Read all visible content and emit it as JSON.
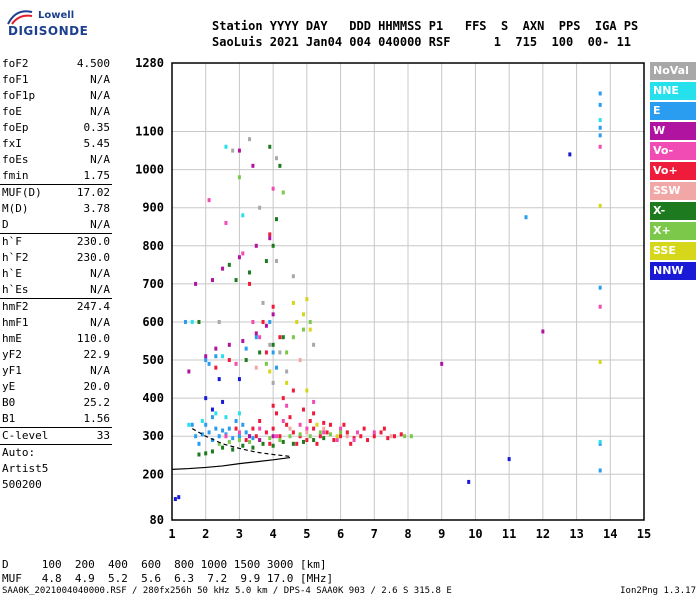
{
  "logo": {
    "brand": "Lowell",
    "product": "DIGISONDE"
  },
  "header": {
    "line1": "Station YYYY DAY   DDD HHMMSS P1   FFS  S  AXN  PPS  IGA PS",
    "line2": "SaoLuis 2021 Jan04 004 040000 RSF      1  715  100  00- 11"
  },
  "params": {
    "groups": [
      [
        [
          "foF2",
          "4.500"
        ],
        [
          "foF1",
          "N/A"
        ],
        [
          "foF1p",
          "N/A"
        ],
        [
          "foE",
          "N/A"
        ],
        [
          "foEp",
          "0.35"
        ],
        [
          "fxI",
          "5.45"
        ],
        [
          "foEs",
          "N/A"
        ],
        [
          "fmin",
          "1.75"
        ]
      ],
      [
        [
          "MUF(D)",
          "17.02"
        ],
        [
          "M(D)",
          "3.78"
        ],
        [
          "D",
          "N/A"
        ]
      ],
      [
        [
          "h`F",
          "230.0"
        ],
        [
          "h`F2",
          "230.0"
        ],
        [
          "h`E",
          "N/A"
        ],
        [
          "h`Es",
          "N/A"
        ]
      ],
      [
        [
          "hmF2",
          "247.4"
        ],
        [
          "hmF1",
          "N/A"
        ],
        [
          "hmE",
          "110.0"
        ],
        [
          "yF2",
          "22.9"
        ],
        [
          "yF1",
          "N/A"
        ],
        [
          "yE",
          "20.0"
        ],
        [
          "B0",
          "25.2"
        ],
        [
          "B1",
          "1.56"
        ]
      ],
      [
        [
          "C-level",
          "33"
        ]
      ]
    ],
    "auto_label": "Auto:",
    "artist": "Artist5",
    "artist_version": "500200"
  },
  "legend": [
    {
      "label": "NoVal",
      "color": "#a8a8a8"
    },
    {
      "label": "NNE",
      "color": "#26e0ec"
    },
    {
      "label": "E",
      "color": "#2a9df0"
    },
    {
      "label": "W",
      "color": "#b0139f"
    },
    {
      "label": "Vo-",
      "color": "#f04cb4"
    },
    {
      "label": "Vo+",
      "color": "#ee1b3a"
    },
    {
      "label": "SSW",
      "color": "#f2a7a7"
    },
    {
      "label": "X-",
      "color": "#1e7a1e"
    },
    {
      "label": "X+",
      "color": "#7cc84a"
    },
    {
      "label": "SSE",
      "color": "#d6d61a"
    },
    {
      "label": "NNW",
      "color": "#1a1ad6"
    }
  ],
  "muf_table": {
    "row_d": "D     100  200  400  600  800 1000 1500 3000 [km]",
    "row_muf": "MUF   4.8  4.9  5.2  5.6  6.3  7.2  9.9 17.0 [MHz]"
  },
  "footer": {
    "left": "SAA0K_2021004040000.RSF / 280fx256h 50 kHz 5.0 km / DPS-4 SAA0K 903 / 2.6 S 315.8 E",
    "right": "Ion2Png 1.3.17"
  },
  "chart_data": {
    "type": "scatter",
    "title": "",
    "xlabel": "",
    "ylabel": "",
    "xlim": [
      1,
      15
    ],
    "ylim": [
      80,
      1280
    ],
    "x_ticks": [
      1,
      2,
      3,
      4,
      5,
      6,
      7,
      8,
      9,
      10,
      11,
      12,
      13,
      14,
      15
    ],
    "y_ticks": [
      80,
      200,
      300,
      400,
      500,
      600,
      700,
      800,
      900,
      1000,
      1100,
      1280
    ],
    "grid": true,
    "legend_position": "right",
    "trace_hF": {
      "x": [
        1.0,
        1.5,
        2.0,
        2.5,
        3.0,
        3.5,
        4.0,
        4.5
      ],
      "y": [
        213,
        215,
        218,
        222,
        228,
        233,
        238,
        244
      ]
    },
    "trace_hmF2": {
      "x": [
        1.6,
        2.0,
        2.5,
        3.0,
        3.5,
        4.0,
        4.5
      ],
      "y": [
        320,
        300,
        280,
        268,
        258,
        252,
        247
      ]
    },
    "series": [
      {
        "name": "E",
        "points": [
          [
            1.7,
            300
          ],
          [
            1.9,
            305
          ],
          [
            2.1,
            310
          ],
          [
            2.2,
            290
          ],
          [
            2.4,
            300
          ],
          [
            2.6,
            305
          ],
          [
            2.8,
            295
          ],
          [
            3.0,
            300
          ],
          [
            2.0,
            330
          ],
          [
            2.3,
            320
          ],
          [
            2.5,
            315
          ],
          [
            3.2,
            310
          ],
          [
            1.8,
            280
          ],
          [
            2.7,
            320
          ],
          [
            3.4,
            295
          ],
          [
            2.9,
            340
          ],
          [
            3.1,
            330
          ],
          [
            2.2,
            350
          ],
          [
            1.6,
            330
          ],
          [
            2.0,
            500
          ],
          [
            2.3,
            510
          ],
          [
            3.2,
            530
          ],
          [
            3.5,
            560
          ],
          [
            3.9,
            600
          ],
          [
            4.0,
            520
          ],
          [
            2.1,
            490
          ],
          [
            13.7,
            1200
          ],
          [
            13.7,
            1170
          ],
          [
            13.7,
            1110
          ],
          [
            13.7,
            1090
          ],
          [
            13.7,
            690
          ],
          [
            13.7,
            280
          ],
          [
            13.7,
            210
          ],
          [
            11.5,
            875
          ],
          [
            1.4,
            600
          ],
          [
            4.1,
            480
          ]
        ]
      },
      {
        "name": "Vo+",
        "points": [
          [
            3.2,
            290
          ],
          [
            3.5,
            300
          ],
          [
            3.8,
            310
          ],
          [
            4.0,
            320
          ],
          [
            4.2,
            300
          ],
          [
            4.4,
            330
          ],
          [
            4.6,
            310
          ],
          [
            4.8,
            300
          ],
          [
            5.0,
            290
          ],
          [
            5.2,
            320
          ],
          [
            5.4,
            300
          ],
          [
            5.6,
            310
          ],
          [
            5.8,
            290
          ],
          [
            6.0,
            300
          ],
          [
            6.2,
            310
          ],
          [
            6.4,
            295
          ],
          [
            6.6,
            300
          ],
          [
            6.8,
            290
          ],
          [
            7.0,
            300
          ],
          [
            7.2,
            310
          ],
          [
            7.4,
            295
          ],
          [
            7.6,
            300
          ],
          [
            7.8,
            305
          ],
          [
            3.6,
            340
          ],
          [
            4.1,
            360
          ],
          [
            4.5,
            350
          ],
          [
            5.1,
            340
          ],
          [
            5.5,
            335
          ],
          [
            6.1,
            330
          ],
          [
            4.3,
            400
          ],
          [
            4.6,
            420
          ],
          [
            4.0,
            380
          ],
          [
            5.2,
            360
          ],
          [
            3.9,
            280
          ],
          [
            4.7,
            280
          ],
          [
            5.3,
            280
          ],
          [
            6.3,
            280
          ],
          [
            3.4,
            320
          ],
          [
            2.9,
            320
          ],
          [
            4.9,
            370
          ],
          [
            5.7,
            330
          ],
          [
            6.7,
            320
          ],
          [
            7.3,
            320
          ],
          [
            3.7,
            600
          ],
          [
            4.0,
            640
          ],
          [
            3.8,
            520
          ],
          [
            2.3,
            480
          ],
          [
            2.7,
            500
          ],
          [
            4.2,
            560
          ],
          [
            3.3,
            700
          ],
          [
            3.9,
            830
          ]
        ]
      },
      {
        "name": "Vo-",
        "points": [
          [
            3.0,
            310
          ],
          [
            3.3,
            300
          ],
          [
            3.6,
            320
          ],
          [
            4.3,
            340
          ],
          [
            4.8,
            330
          ],
          [
            5.0,
            320
          ],
          [
            5.5,
            310
          ],
          [
            6.0,
            320
          ],
          [
            6.5,
            310
          ],
          [
            7.0,
            310
          ],
          [
            2.6,
            300
          ],
          [
            4.1,
            300
          ],
          [
            5.9,
            290
          ],
          [
            4.4,
            380
          ],
          [
            2.9,
            490
          ],
          [
            3.6,
            560
          ],
          [
            3.4,
            600
          ],
          [
            2.1,
            920
          ],
          [
            2.6,
            860
          ],
          [
            3.1,
            780
          ],
          [
            4.0,
            950
          ],
          [
            5.2,
            390
          ],
          [
            6.4,
            290
          ],
          [
            13.7,
            1060
          ],
          [
            13.7,
            640
          ]
        ]
      },
      {
        "name": "X-",
        "points": [
          [
            2.2,
            260
          ],
          [
            2.5,
            270
          ],
          [
            2.8,
            265
          ],
          [
            3.1,
            275
          ],
          [
            3.4,
            270
          ],
          [
            3.7,
            280
          ],
          [
            4.0,
            275
          ],
          [
            4.3,
            285
          ],
          [
            4.6,
            280
          ],
          [
            4.9,
            285
          ],
          [
            2.0,
            255
          ],
          [
            1.8,
            252
          ],
          [
            5.2,
            290
          ],
          [
            5.5,
            295
          ],
          [
            3.2,
            500
          ],
          [
            3.6,
            520
          ],
          [
            4.0,
            540
          ],
          [
            4.3,
            560
          ],
          [
            2.9,
            710
          ],
          [
            3.3,
            730
          ],
          [
            3.8,
            760
          ],
          [
            4.0,
            800
          ],
          [
            4.2,
            1010
          ],
          [
            3.9,
            1060
          ],
          [
            4.1,
            870
          ],
          [
            1.8,
            600
          ],
          [
            2.7,
            750
          ]
        ]
      },
      {
        "name": "X+",
        "points": [
          [
            2.4,
            280
          ],
          [
            2.7,
            285
          ],
          [
            3.0,
            290
          ],
          [
            3.3,
            285
          ],
          [
            3.6,
            290
          ],
          [
            3.9,
            295
          ],
          [
            4.2,
            290
          ],
          [
            4.5,
            300
          ],
          [
            4.8,
            305
          ],
          [
            5.1,
            300
          ],
          [
            5.4,
            310
          ],
          [
            5.7,
            305
          ],
          [
            6.0,
            310
          ],
          [
            7.9,
            300
          ],
          [
            8.1,
            300
          ],
          [
            4.6,
            560
          ],
          [
            4.9,
            580
          ],
          [
            5.1,
            600
          ],
          [
            3.8,
            490
          ],
          [
            4.4,
            520
          ],
          [
            3.0,
            980
          ],
          [
            4.3,
            940
          ]
        ]
      },
      {
        "name": "SSE",
        "points": [
          [
            4.7,
            600
          ],
          [
            4.9,
            620
          ],
          [
            5.0,
            660
          ],
          [
            5.1,
            580
          ],
          [
            4.6,
            650
          ],
          [
            3.9,
            470
          ],
          [
            4.4,
            440
          ],
          [
            5.0,
            420
          ],
          [
            5.3,
            330
          ],
          [
            5.9,
            300
          ],
          [
            13.7,
            905
          ],
          [
            13.7,
            495
          ]
        ]
      },
      {
        "name": "W",
        "points": [
          [
            2.0,
            510
          ],
          [
            2.3,
            530
          ],
          [
            2.7,
            540
          ],
          [
            3.1,
            550
          ],
          [
            3.5,
            570
          ],
          [
            3.8,
            590
          ],
          [
            4.0,
            620
          ],
          [
            1.7,
            700
          ],
          [
            2.2,
            710
          ],
          [
            2.5,
            740
          ],
          [
            3.0,
            770
          ],
          [
            3.5,
            800
          ],
          [
            3.9,
            820
          ],
          [
            1.5,
            470
          ],
          [
            3.3,
            300
          ],
          [
            3.6,
            290
          ],
          [
            4.0,
            300
          ],
          [
            12.0,
            575
          ],
          [
            9.0,
            490
          ],
          [
            3.0,
            1050
          ],
          [
            3.4,
            1010
          ]
        ]
      },
      {
        "name": "NNE",
        "points": [
          [
            1.5,
            330
          ],
          [
            1.9,
            340
          ],
          [
            2.3,
            360
          ],
          [
            2.6,
            350
          ],
          [
            3.0,
            360
          ],
          [
            1.6,
            600
          ],
          [
            2.5,
            510
          ],
          [
            3.1,
            880
          ],
          [
            13.7,
            1130
          ],
          [
            13.7,
            285
          ],
          [
            2.6,
            1060
          ]
        ]
      },
      {
        "name": "NNW",
        "points": [
          [
            2.2,
            370
          ],
          [
            2.5,
            390
          ],
          [
            2.0,
            400
          ],
          [
            1.1,
            135
          ],
          [
            1.2,
            140
          ],
          [
            9.8,
            180
          ],
          [
            11.0,
            240
          ],
          [
            12.8,
            1040
          ],
          [
            2.4,
            450
          ],
          [
            3.0,
            450
          ]
        ]
      },
      {
        "name": "SSW",
        "points": [
          [
            4.5,
            320
          ],
          [
            5.0,
            310
          ],
          [
            5.5,
            320
          ],
          [
            6.2,
            300
          ],
          [
            7.5,
            300
          ],
          [
            3.5,
            480
          ],
          [
            4.8,
            500
          ]
        ]
      },
      {
        "name": "NoVal",
        "points": [
          [
            4.0,
            440
          ],
          [
            4.4,
            470
          ],
          [
            4.2,
            520
          ],
          [
            3.7,
            650
          ],
          [
            3.3,
            1080
          ],
          [
            2.8,
            1050
          ],
          [
            4.1,
            760
          ],
          [
            4.6,
            720
          ],
          [
            3.6,
            900
          ],
          [
            2.4,
            600
          ],
          [
            3.9,
            540
          ],
          [
            5.2,
            540
          ],
          [
            4.1,
            1030
          ]
        ]
      }
    ]
  }
}
